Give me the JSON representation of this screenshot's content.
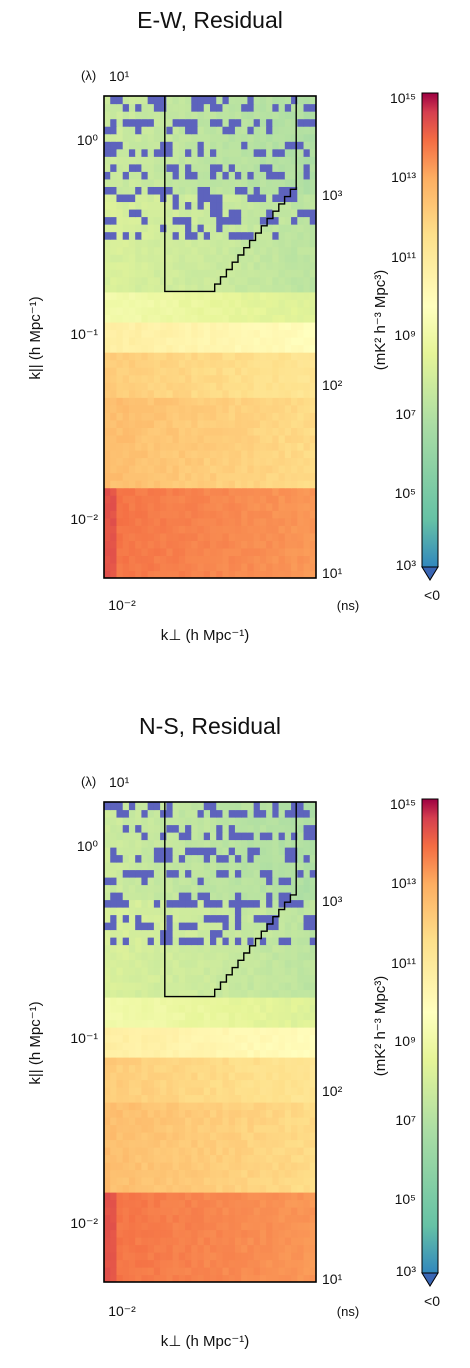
{
  "chart_data": [
    {
      "type": "heatmap",
      "title": "E-W, Residual",
      "xlabel": "k⊥ (h Mpc⁻¹)",
      "ylabel": "k|| (h Mpc⁻¹)",
      "right_ylabel": "(mK² h⁻³ Mpc³)",
      "top_axis_label": "(λ)",
      "top_tick_labels": [
        "10¹"
      ],
      "bottom_tick_labels": [
        "10⁻²"
      ],
      "left_tick_labels": [
        "10⁰",
        "10⁻¹",
        "10⁻²"
      ],
      "right_axis_label": "(ns)",
      "right_tick_labels": [
        "10³",
        "10²",
        "10¹"
      ],
      "xscale": "log",
      "yscale": "log",
      "xlim": [
        0.008,
        0.1
      ],
      "ylim": [
        0.005,
        1.7
      ],
      "colorbar": {
        "scale": "log",
        "range": [
          1000.0,
          1000000000000000.0
        ],
        "tick_labels": [
          "10¹⁵",
          "10¹³",
          "10¹¹",
          "10⁹",
          "10⁷",
          "10⁵",
          "10³"
        ],
        "under_label": "<0",
        "colormap": "spectral"
      },
      "row_bands": [
        {
          "k_par": [
            0.005,
            0.0145
          ],
          "log10_power": 13.7
        },
        {
          "k_par": [
            0.0145,
            0.045
          ],
          "log10_power": 12.4
        },
        {
          "k_par": [
            0.045,
            0.08
          ],
          "log10_power": 12.0
        },
        {
          "k_par": [
            0.08,
            0.11
          ],
          "log10_power": 10.6
        },
        {
          "k_par": [
            0.11,
            0.16
          ],
          "log10_power": 9.0
        },
        {
          "k_par": [
            0.16,
            0.5
          ],
          "log10_power": 8.0
        },
        {
          "k_par": [
            0.5,
            1.7
          ],
          "log10_power": 7.6
        }
      ],
      "negative_value_region": "noisy rows with negative residual power at k|| above ~0.3",
      "wedge_outline": {
        "k_perp_left": 0.0165,
        "k_perp_right": 0.079,
        "k_par_bottom": 0.16,
        "k_par_step_top": 0.55
      }
    },
    {
      "type": "heatmap",
      "title": "N-S, Residual",
      "xlabel": "k⊥ (h Mpc⁻¹)",
      "ylabel": "k|| (h Mpc⁻¹)",
      "right_ylabel": "(mK² h⁻³ Mpc³)",
      "top_axis_label": "(λ)",
      "top_tick_labels": [
        "10¹"
      ],
      "bottom_tick_labels": [
        "10⁻²"
      ],
      "left_tick_labels": [
        "10⁰",
        "10⁻¹",
        "10⁻²"
      ],
      "right_axis_label": "(ns)",
      "right_tick_labels": [
        "10³",
        "10²",
        "10¹"
      ],
      "xscale": "log",
      "yscale": "log",
      "xlim": [
        0.008,
        0.1
      ],
      "ylim": [
        0.005,
        1.7
      ],
      "colorbar": {
        "scale": "log",
        "range": [
          1000.0,
          1000000000000000.0
        ],
        "tick_labels": [
          "10¹⁵",
          "10¹³",
          "10¹¹",
          "10⁹",
          "10⁷",
          "10⁵",
          "10³"
        ],
        "under_label": "<0",
        "colormap": "spectral"
      },
      "row_bands": [
        {
          "k_par": [
            0.005,
            0.0145
          ],
          "log10_power": 13.7
        },
        {
          "k_par": [
            0.0145,
            0.045
          ],
          "log10_power": 12.4
        },
        {
          "k_par": [
            0.045,
            0.08
          ],
          "log10_power": 12.0
        },
        {
          "k_par": [
            0.08,
            0.11
          ],
          "log10_power": 10.6
        },
        {
          "k_par": [
            0.11,
            0.16
          ],
          "log10_power": 9.0
        },
        {
          "k_par": [
            0.16,
            0.5
          ],
          "log10_power": 8.0
        },
        {
          "k_par": [
            0.5,
            1.7
          ],
          "log10_power": 7.6
        }
      ],
      "negative_value_region": "noisy rows with negative residual power at k|| above ~0.3",
      "wedge_outline": {
        "k_perp_left": 0.0165,
        "k_perp_right": 0.079,
        "k_par_bottom": 0.16,
        "k_par_step_top": 0.55
      }
    }
  ]
}
